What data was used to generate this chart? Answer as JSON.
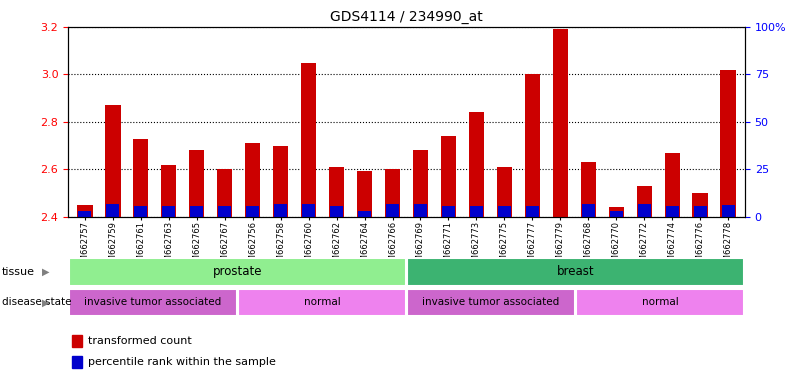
{
  "title": "GDS4114 / 234990_at",
  "samples": [
    "GSM662757",
    "GSM662759",
    "GSM662761",
    "GSM662763",
    "GSM662765",
    "GSM662767",
    "GSM662756",
    "GSM662758",
    "GSM662760",
    "GSM662762",
    "GSM662764",
    "GSM662766",
    "GSM662769",
    "GSM662771",
    "GSM662773",
    "GSM662775",
    "GSM662777",
    "GSM662779",
    "GSM662768",
    "GSM662770",
    "GSM662772",
    "GSM662774",
    "GSM662776",
    "GSM662778"
  ],
  "red_values": [
    2.45,
    2.87,
    2.73,
    2.62,
    2.68,
    2.6,
    2.71,
    2.7,
    3.05,
    2.61,
    2.595,
    2.6,
    2.68,
    2.74,
    2.84,
    2.61,
    3.0,
    3.19,
    2.63,
    2.44,
    2.53,
    2.67,
    2.5,
    3.02
  ],
  "blue_heights": [
    0.025,
    0.055,
    0.045,
    0.045,
    0.045,
    0.045,
    0.045,
    0.055,
    0.055,
    0.045,
    0.025,
    0.055,
    0.055,
    0.045,
    0.045,
    0.045,
    0.045,
    0.0,
    0.055,
    0.025,
    0.055,
    0.045,
    0.045,
    0.05
  ],
  "ylim_left": [
    2.4,
    3.2
  ],
  "ylim_right": [
    0,
    100
  ],
  "yticks_left": [
    2.4,
    2.6,
    2.8,
    3.0,
    3.2
  ],
  "yticks_right": [
    0,
    25,
    50,
    75,
    100
  ],
  "tissue_groups": [
    {
      "label": "prostate",
      "start": 0,
      "end": 12,
      "color": "#90EE90"
    },
    {
      "label": "breast",
      "start": 12,
      "end": 24,
      "color": "#3CB371"
    }
  ],
  "disease_groups": [
    {
      "label": "invasive tumor associated",
      "start": 0,
      "end": 6,
      "color": "#CC66CC"
    },
    {
      "label": "normal",
      "start": 6,
      "end": 12,
      "color": "#EE82EE"
    },
    {
      "label": "invasive tumor associated",
      "start": 12,
      "end": 18,
      "color": "#CC66CC"
    },
    {
      "label": "normal",
      "start": 18,
      "end": 24,
      "color": "#EE82EE"
    }
  ],
  "bar_width": 0.55,
  "baseline": 2.4,
  "legend_labels": [
    "transformed count",
    "percentile rank within the sample"
  ],
  "right_ytick_labels": [
    "0",
    "25",
    "50",
    "75",
    "100%"
  ]
}
